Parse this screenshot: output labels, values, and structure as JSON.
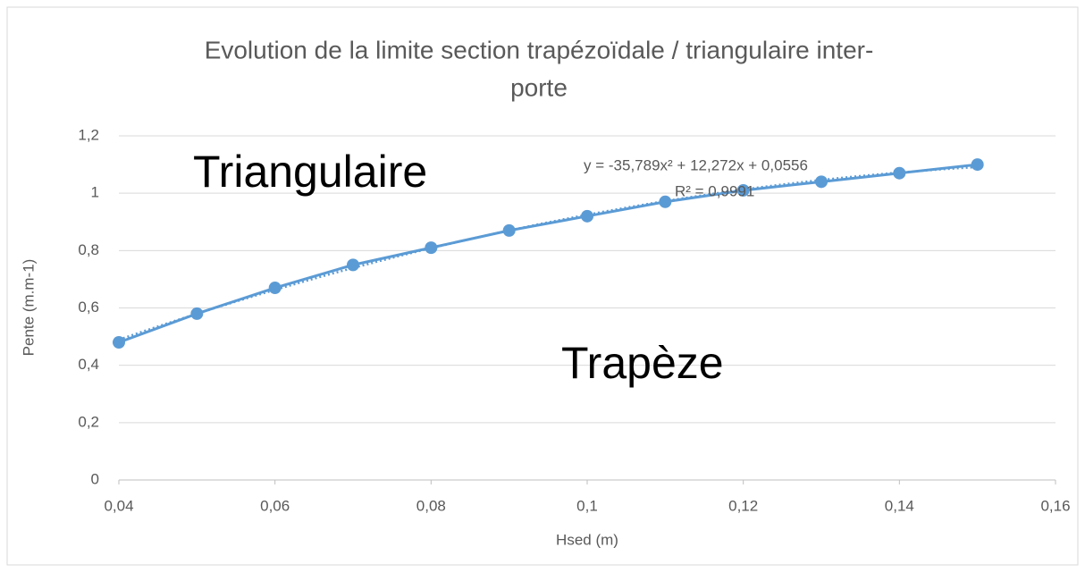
{
  "chart_data": {
    "type": "scatter",
    "title": [
      "Evolution de la limite section trapézoïdale / triangulaire inter-",
      "porte"
    ],
    "x_label": "Hsed (m)",
    "y_label": "Pente (m.m-1)",
    "x": [
      0.04,
      0.05,
      0.06,
      0.07,
      0.08,
      0.09,
      0.1,
      0.11,
      0.12,
      0.13,
      0.14,
      0.15
    ],
    "series": [
      {
        "color": "#5b9bd5",
        "values": [
          0.48,
          0.58,
          0.67,
          0.75,
          0.81,
          0.87,
          0.92,
          0.97,
          1.01,
          1.04,
          1.07,
          1.1
        ]
      }
    ],
    "trendline": {
      "type": "polynomial",
      "coefficients": [
        -35.789,
        12.272,
        0.0556
      ],
      "style": "dotted"
    },
    "equation": "y = -35,789x² + 12,272x + 0,0556",
    "r_squared": "R² = 0,9991",
    "annotations": [
      "Triangulaire",
      "Trapèze"
    ],
    "xlim": [
      0.04,
      0.16
    ],
    "xticks": [
      {
        "value": 0.04,
        "label": "0,04"
      },
      {
        "value": 0.06,
        "label": "0,06"
      },
      {
        "value": 0.08,
        "label": "0,08"
      },
      {
        "value": 0.1,
        "label": "0,1"
      },
      {
        "value": 0.12,
        "label": "0,12"
      },
      {
        "value": 0.14,
        "label": "0,14"
      },
      {
        "value": 0.16,
        "label": "0,16"
      }
    ],
    "ylim": [
      0,
      1.2
    ],
    "yticks": [
      0,
      {
        "value": 0.2,
        "label": "0,2"
      },
      {
        "value": 0.4,
        "label": "0,4"
      },
      {
        "value": 0.6,
        "label": "0,6"
      },
      {
        "value": 0.8,
        "label": "0,8"
      },
      1,
      {
        "value": 1.2,
        "label": "1,2"
      }
    ],
    "grid": true
  }
}
